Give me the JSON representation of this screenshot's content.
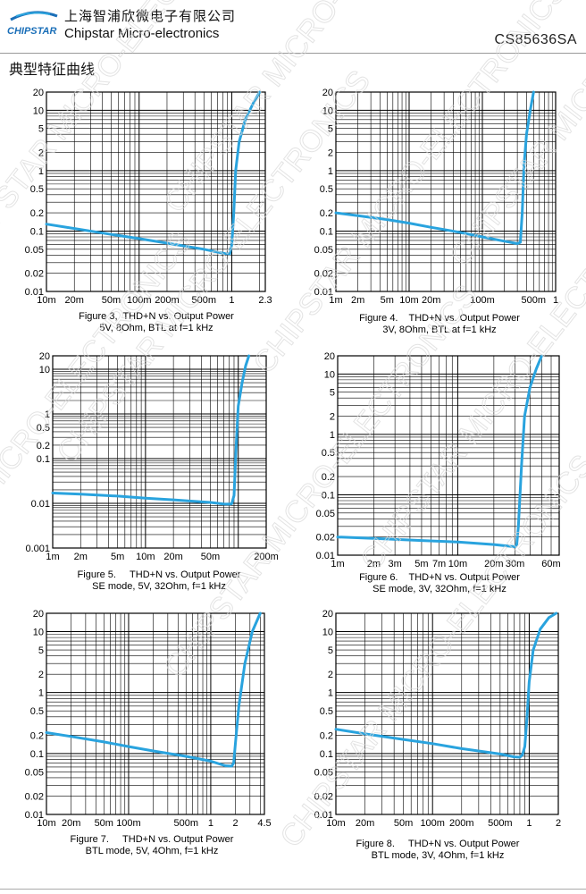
{
  "header": {
    "logo_mark": "CHIPSTAR",
    "company_cn": "上海智浦欣微电子有限公司",
    "company_en": "Chipstar Micro-electronics",
    "part_number": "CS85636SA"
  },
  "section_title": "典型特征曲线",
  "colors": {
    "curve": "#29a3de",
    "grid": "#000000",
    "watermark": "#d8d8d8"
  },
  "watermark_text": "CHIPSTAR MICRO-ELECTRONICS",
  "chart_data": [
    {
      "type": "line",
      "xscale": "log",
      "yscale": "log",
      "xlim": [
        0.01,
        2.3
      ],
      "ylim": [
        0.01,
        20
      ],
      "xticks": [
        0.01,
        0.02,
        0.05,
        0.1,
        0.2,
        0.5,
        1,
        2.3
      ],
      "xtick_labels": [
        "10m",
        "20m",
        "50m",
        "100m",
        "200m",
        "500m",
        "1",
        "2.3"
      ],
      "yticks": [
        0.01,
        0.02,
        0.05,
        0.1,
        0.2,
        0.5,
        1,
        2,
        5,
        10,
        20
      ],
      "ytick_labels": [
        "0.01",
        "0.02",
        "0.05",
        "0.1",
        "0.2",
        "0.5",
        "1",
        "2",
        "5",
        "10",
        "20"
      ],
      "caption_line1": "Figure 3,  THD+N vs. Output Power",
      "caption_line2": "5V, 8Ohm, BTL at f=1 kHz",
      "x": [
        0.01,
        0.02,
        0.05,
        0.1,
        0.2,
        0.5,
        0.8,
        0.95,
        1.0,
        1.05,
        1.1,
        1.2,
        1.4,
        1.7,
        2.0
      ],
      "y": [
        0.13,
        0.11,
        0.088,
        0.075,
        0.063,
        0.05,
        0.043,
        0.042,
        0.06,
        0.2,
        1.0,
        3,
        7,
        13,
        20
      ]
    },
    {
      "type": "line",
      "xscale": "log",
      "yscale": "log",
      "xlim": [
        0.001,
        1
      ],
      "ylim": [
        0.01,
        20
      ],
      "xticks": [
        0.001,
        0.002,
        0.005,
        0.01,
        0.02,
        0.1,
        0.5,
        1
      ],
      "xtick_labels": [
        "1m",
        "2m",
        "5m",
        "10m",
        "20m",
        "100m",
        "500m",
        "1"
      ],
      "yticks": [
        0.01,
        0.02,
        0.05,
        0.1,
        0.2,
        0.5,
        1,
        2,
        5,
        10,
        20
      ],
      "ytick_labels": [
        "0.01",
        "0.02",
        "0.05",
        "0.1",
        "0.2",
        "0.5",
        "1",
        "2",
        "5",
        "10",
        "20"
      ],
      "caption_line1": "Figure 4.    THD+N vs. Output Power",
      "caption_line2": "3V, 8Ohm, BTL at f=1 kHz",
      "x": [
        0.001,
        0.002,
        0.005,
        0.01,
        0.02,
        0.05,
        0.1,
        0.2,
        0.3,
        0.33,
        0.35,
        0.37,
        0.4,
        0.45,
        0.5
      ],
      "y": [
        0.2,
        0.18,
        0.155,
        0.135,
        0.115,
        0.095,
        0.08,
        0.068,
        0.062,
        0.065,
        0.2,
        1.2,
        4,
        10,
        20
      ]
    },
    {
      "type": "line",
      "xscale": "log",
      "yscale": "log",
      "xlim": [
        0.001,
        0.2
      ],
      "ylim": [
        0.001,
        20
      ],
      "xticks": [
        0.001,
        0.002,
        0.005,
        0.01,
        0.02,
        0.05,
        0.2
      ],
      "xtick_labels": [
        "1m",
        "2m",
        "5m",
        "10m",
        "20m",
        "50m",
        "200m"
      ],
      "yticks": [
        0.001,
        0.01,
        0.1,
        0.2,
        0.5,
        1,
        10,
        20
      ],
      "ytick_labels": [
        "0.001",
        "0.01",
        "0.1",
        "0.2",
        "0.5",
        "1",
        "10",
        "20"
      ],
      "caption_line1": "Figure 5.     THD+N vs. Output Power",
      "caption_line2": "SE mode, 5V, 32Ohm, f=1 kHz",
      "x": [
        0.001,
        0.002,
        0.005,
        0.01,
        0.02,
        0.05,
        0.07,
        0.08,
        0.085,
        0.09,
        0.095,
        0.1,
        0.11,
        0.12,
        0.13
      ],
      "y": [
        0.017,
        0.016,
        0.0145,
        0.013,
        0.012,
        0.0105,
        0.0097,
        0.0096,
        0.0098,
        0.015,
        0.2,
        1.5,
        5,
        12,
        20
      ]
    },
    {
      "type": "line",
      "xscale": "log",
      "yscale": "log",
      "xlim": [
        0.001,
        0.07
      ],
      "ylim": [
        0.01,
        20
      ],
      "xticks": [
        0.001,
        0.002,
        0.003,
        0.005,
        0.007,
        0.01,
        0.02,
        0.03,
        0.06
      ],
      "xtick_labels": [
        "1m",
        "2m",
        "3m",
        "5m",
        "7m",
        "10m",
        "20m",
        "30m",
        "60m"
      ],
      "yticks": [
        0.01,
        0.02,
        0.05,
        0.1,
        0.2,
        0.5,
        1,
        2,
        5,
        10,
        20
      ],
      "ytick_labels": [
        "0.01",
        "0.02",
        "0.05",
        "0.1",
        "0.2",
        "0.5",
        "1",
        "2",
        "5",
        "10",
        "20"
      ],
      "caption_line1": "Figure 6.    THD+N vs. Output Power",
      "caption_line2": "SE mode, 3V, 32Ohm, f=1 kHz",
      "x": [
        0.001,
        0.002,
        0.005,
        0.01,
        0.02,
        0.03,
        0.031,
        0.032,
        0.034,
        0.036,
        0.04,
        0.045,
        0.05
      ],
      "y": [
        0.02,
        0.019,
        0.0175,
        0.0165,
        0.015,
        0.0138,
        0.015,
        0.03,
        0.3,
        2,
        6,
        12,
        20
      ]
    },
    {
      "type": "line",
      "xscale": "log",
      "yscale": "log",
      "xlim": [
        0.01,
        4.5
      ],
      "ylim": [
        0.01,
        20
      ],
      "xticks": [
        0.01,
        0.02,
        0.05,
        0.1,
        0.5,
        1,
        2,
        4.5
      ],
      "xtick_labels": [
        "10m",
        "20m",
        "50m",
        "100m",
        "500m",
        "1",
        "2",
        "4.5"
      ],
      "yticks": [
        0.01,
        0.02,
        0.05,
        0.1,
        0.2,
        0.5,
        1,
        2,
        5,
        10,
        20
      ],
      "ytick_labels": [
        "0.01",
        "0.02",
        "0.05",
        "0.1",
        "0.2",
        "0.5",
        "1",
        "2",
        "5",
        "10",
        "20"
      ],
      "caption_line1": "Figure 7.     THD+N vs. Output Power",
      "caption_line2": "BTL mode, 5V, 4Ohm, f=1 kHz",
      "x": [
        0.01,
        0.02,
        0.05,
        0.1,
        0.2,
        0.5,
        1,
        1.5,
        1.8,
        1.9,
        2.0,
        2.2,
        2.6,
        3.2,
        4.0
      ],
      "y": [
        0.22,
        0.19,
        0.155,
        0.13,
        0.11,
        0.09,
        0.075,
        0.063,
        0.062,
        0.07,
        0.15,
        0.6,
        3,
        10,
        20
      ]
    },
    {
      "type": "line",
      "xscale": "log",
      "yscale": "log",
      "xlim": [
        0.01,
        2
      ],
      "ylim": [
        0.01,
        20
      ],
      "xticks": [
        0.01,
        0.02,
        0.05,
        0.1,
        0.2,
        0.5,
        1,
        2
      ],
      "xtick_labels": [
        "10m",
        "20m",
        "50m",
        "100m",
        "200m",
        "500m",
        "1",
        "2"
      ],
      "yticks": [
        0.01,
        0.02,
        0.05,
        0.1,
        0.2,
        0.5,
        1,
        2,
        5,
        10,
        20
      ],
      "ytick_labels": [
        "0.01",
        "0.02",
        "0.05",
        "0.1",
        "0.2",
        "0.5",
        "1",
        "2",
        "5",
        "10",
        "20"
      ],
      "caption_line1": "Figure 8.     THD+N vs. Output Power",
      "caption_line2": "BTL mode, 3V, 4Ohm, f=1 kHz",
      "x": [
        0.01,
        0.02,
        0.05,
        0.1,
        0.2,
        0.5,
        0.7,
        0.8,
        0.85,
        0.9,
        0.95,
        1.0,
        1.1,
        1.3,
        1.6,
        1.9
      ],
      "y": [
        0.25,
        0.21,
        0.17,
        0.145,
        0.12,
        0.098,
        0.088,
        0.087,
        0.095,
        0.13,
        0.4,
        1.5,
        5,
        11,
        17,
        20
      ]
    }
  ]
}
